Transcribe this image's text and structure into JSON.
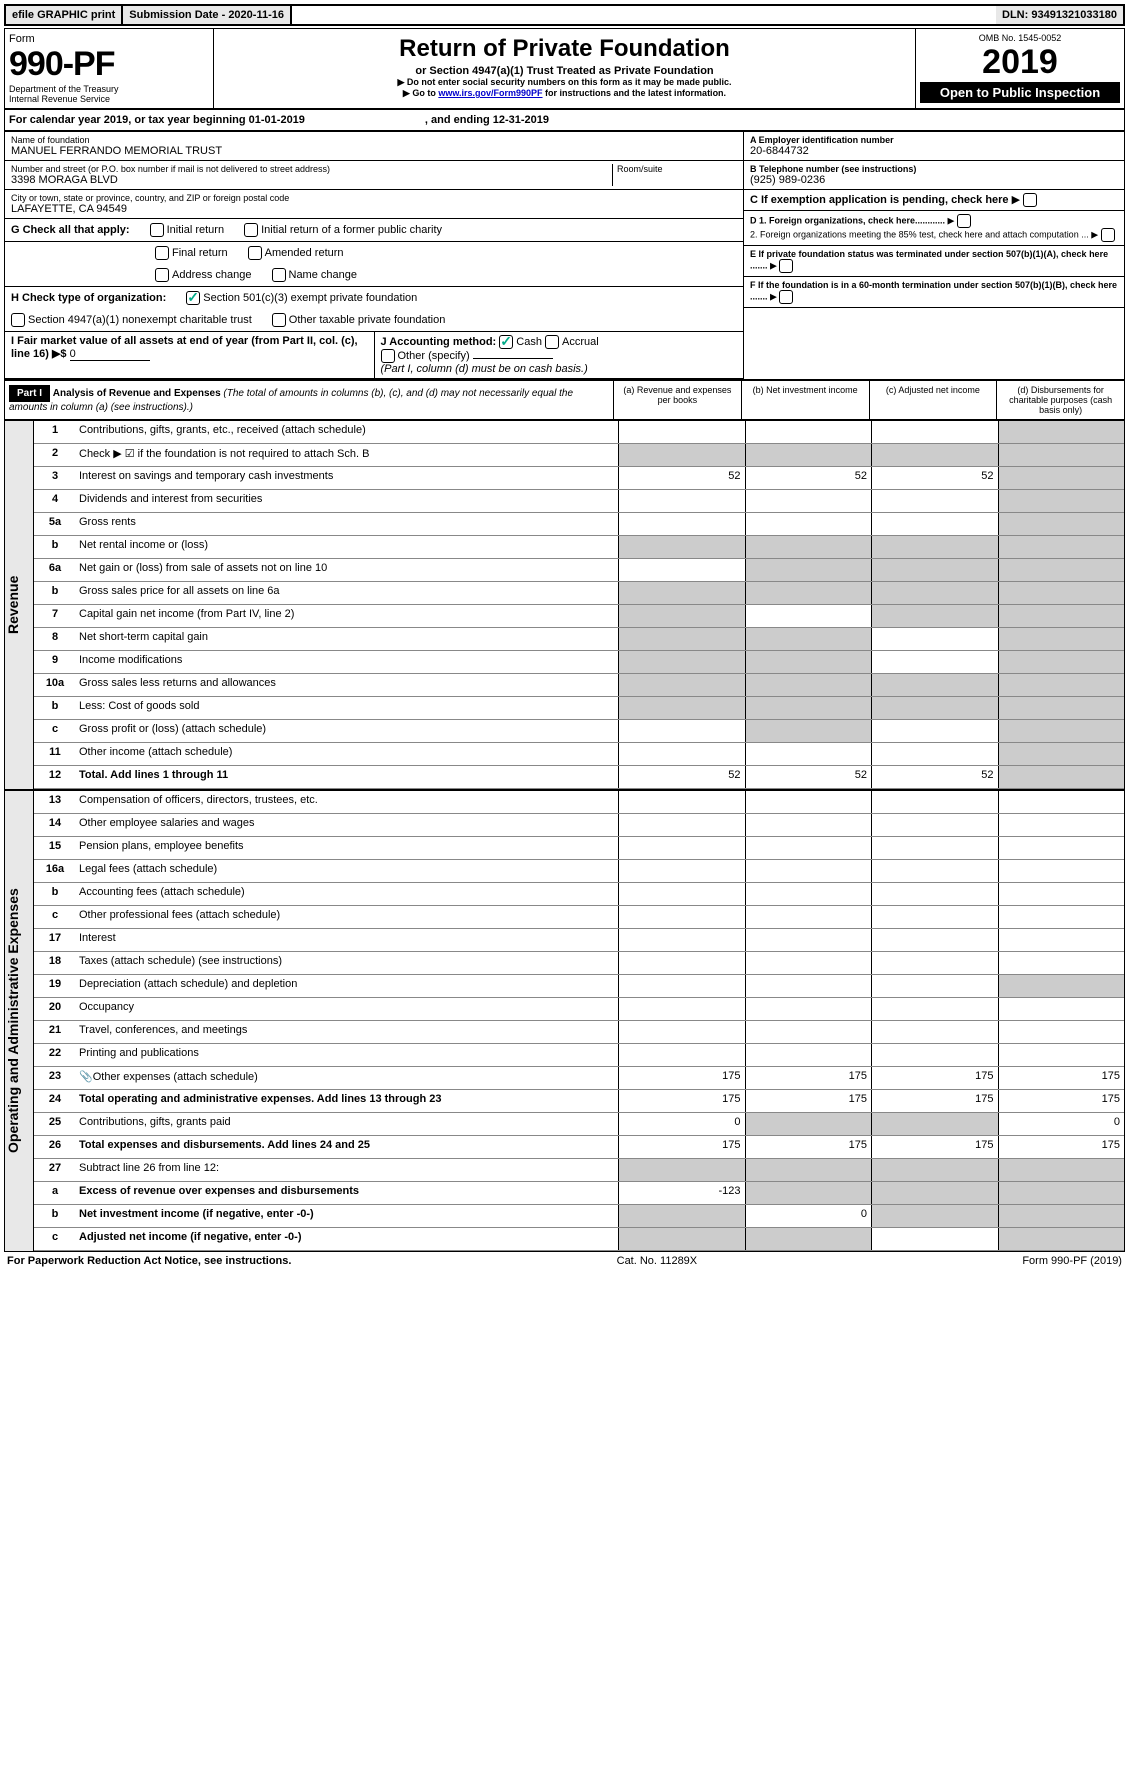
{
  "top": {
    "efile": "efile GRAPHIC print",
    "sub_label": "Submission Date - 2020-11-16",
    "dln": "DLN: 93491321033180"
  },
  "header": {
    "form_word": "Form",
    "form_num": "990-PF",
    "dept": "Department of the Treasury",
    "irs": "Internal Revenue Service",
    "title": "Return of Private Foundation",
    "subtitle": "or Section 4947(a)(1) Trust Treated as Private Foundation",
    "warn": "▶ Do not enter social security numbers on this form as it may be made public.",
    "goto": "▶ Go to ",
    "goto_link": "www.irs.gov/Form990PF",
    "goto_rest": " for instructions and the latest information.",
    "omb": "OMB No. 1545-0052",
    "year": "2019",
    "open": "Open to Public Inspection"
  },
  "cal": {
    "text": "For calendar year 2019, or tax year beginning 01-01-2019",
    "end": ", and ending 12-31-2019"
  },
  "name": {
    "label": "Name of foundation",
    "value": "MANUEL FERRANDO MEMORIAL TRUST"
  },
  "ein": {
    "label": "A Employer identification number",
    "value": "20-6844732"
  },
  "addr": {
    "label": "Number and street (or P.O. box number if mail is not delivered to street address)",
    "value": "3398 MORAGA BLVD",
    "room": "Room/suite"
  },
  "tel": {
    "label": "B Telephone number (see instructions)",
    "value": "(925) 989-0236"
  },
  "city": {
    "label": "City or town, state or province, country, and ZIP or foreign postal code",
    "value": "LAFAYETTE, CA  94549"
  },
  "c": {
    "text": "C If exemption application is pending, check here"
  },
  "g": {
    "label": "G Check all that apply:",
    "opts": [
      "Initial return",
      "Initial return of a former public charity",
      "Final return",
      "Amended return",
      "Address change",
      "Name change"
    ]
  },
  "d": {
    "d1": "D 1. Foreign organizations, check here............",
    "d2": "2. Foreign organizations meeting the 85% test, check here and attach computation ..."
  },
  "e": {
    "text": "E If private foundation status was terminated under section 507(b)(1)(A), check here ......."
  },
  "h": {
    "label": "H Check type of organization:",
    "o1": "Section 501(c)(3) exempt private foundation",
    "o2": "Section 4947(a)(1) nonexempt charitable trust",
    "o3": "Other taxable private foundation"
  },
  "i": {
    "label": "I Fair market value of all assets at end of year (from Part II, col. (c), line 16) ▶$ ",
    "value": "0"
  },
  "j": {
    "label": "J Accounting method:",
    "cash": "Cash",
    "accrual": "Accrual",
    "other": "Other (specify)",
    "note": "(Part I, column (d) must be on cash basis.)"
  },
  "f": {
    "text": "F If the foundation is in a 60-month termination under section 507(b)(1)(B), check here ......."
  },
  "part1": {
    "label": "Part I",
    "title": "Analysis of Revenue and Expenses ",
    "note": "(The total of amounts in columns (b), (c), and (d) may not necessarily equal the amounts in column (a) (see instructions).)",
    "cols": [
      "(a) Revenue and expenses per books",
      "(b) Net investment income",
      "(c) Adjusted net income",
      "(d) Disbursements for charitable purposes (cash basis only)"
    ]
  },
  "rev_label": "Revenue",
  "exp_label": "Operating and Administrative Expenses",
  "rows": [
    {
      "n": "1",
      "d": "Contributions, gifts, grants, etc., received (attach schedule)",
      "s": [
        0,
        0,
        0,
        1
      ]
    },
    {
      "n": "2",
      "d": "Check ▶ ☑ if the foundation is not required to attach Sch. B",
      "s": [
        1,
        1,
        1,
        1
      ],
      "bold": false
    },
    {
      "n": "3",
      "d": "Interest on savings and temporary cash investments",
      "a": "52",
      "b": "52",
      "c": "52",
      "s": [
        0,
        0,
        0,
        1
      ]
    },
    {
      "n": "4",
      "d": "Dividends and interest from securities",
      "s": [
        0,
        0,
        0,
        1
      ]
    },
    {
      "n": "5a",
      "d": "Gross rents",
      "s": [
        0,
        0,
        0,
        1
      ]
    },
    {
      "n": "b",
      "d": "Net rental income or (loss)",
      "s": [
        1,
        1,
        1,
        1
      ]
    },
    {
      "n": "6a",
      "d": "Net gain or (loss) from sale of assets not on line 10",
      "s": [
        0,
        1,
        1,
        1
      ]
    },
    {
      "n": "b",
      "d": "Gross sales price for all assets on line 6a",
      "s": [
        1,
        1,
        1,
        1
      ]
    },
    {
      "n": "7",
      "d": "Capital gain net income (from Part IV, line 2)",
      "s": [
        1,
        0,
        1,
        1
      ]
    },
    {
      "n": "8",
      "d": "Net short-term capital gain",
      "s": [
        1,
        1,
        0,
        1
      ]
    },
    {
      "n": "9",
      "d": "Income modifications",
      "s": [
        1,
        1,
        0,
        1
      ]
    },
    {
      "n": "10a",
      "d": "Gross sales less returns and allowances",
      "s": [
        1,
        1,
        1,
        1
      ]
    },
    {
      "n": "b",
      "d": "Less: Cost of goods sold",
      "s": [
        1,
        1,
        1,
        1
      ]
    },
    {
      "n": "c",
      "d": "Gross profit or (loss) (attach schedule)",
      "s": [
        0,
        1,
        0,
        1
      ]
    },
    {
      "n": "11",
      "d": "Other income (attach schedule)",
      "s": [
        0,
        0,
        0,
        1
      ]
    },
    {
      "n": "12",
      "d": "Total. Add lines 1 through 11",
      "a": "52",
      "b": "52",
      "c": "52",
      "s": [
        0,
        0,
        0,
        1
      ],
      "bold": true
    },
    {
      "n": "13",
      "d": "Compensation of officers, directors, trustees, etc.",
      "s": [
        0,
        0,
        0,
        0
      ]
    },
    {
      "n": "14",
      "d": "Other employee salaries and wages",
      "s": [
        0,
        0,
        0,
        0
      ]
    },
    {
      "n": "15",
      "d": "Pension plans, employee benefits",
      "s": [
        0,
        0,
        0,
        0
      ]
    },
    {
      "n": "16a",
      "d": "Legal fees (attach schedule)",
      "s": [
        0,
        0,
        0,
        0
      ]
    },
    {
      "n": "b",
      "d": "Accounting fees (attach schedule)",
      "s": [
        0,
        0,
        0,
        0
      ]
    },
    {
      "n": "c",
      "d": "Other professional fees (attach schedule)",
      "s": [
        0,
        0,
        0,
        0
      ]
    },
    {
      "n": "17",
      "d": "Interest",
      "s": [
        0,
        0,
        0,
        0
      ]
    },
    {
      "n": "18",
      "d": "Taxes (attach schedule) (see instructions)",
      "s": [
        0,
        0,
        0,
        0
      ]
    },
    {
      "n": "19",
      "d": "Depreciation (attach schedule) and depletion",
      "s": [
        0,
        0,
        0,
        1
      ]
    },
    {
      "n": "20",
      "d": "Occupancy",
      "s": [
        0,
        0,
        0,
        0
      ]
    },
    {
      "n": "21",
      "d": "Travel, conferences, and meetings",
      "s": [
        0,
        0,
        0,
        0
      ]
    },
    {
      "n": "22",
      "d": "Printing and publications",
      "s": [
        0,
        0,
        0,
        0
      ]
    },
    {
      "n": "23",
      "d": "Other expenses (attach schedule)",
      "a": "175",
      "b": "175",
      "c": "175",
      "dd": "175",
      "icon": "📎",
      "s": [
        0,
        0,
        0,
        0
      ]
    },
    {
      "n": "24",
      "d": "Total operating and administrative expenses. Add lines 13 through 23",
      "a": "175",
      "b": "175",
      "c": "175",
      "dd": "175",
      "s": [
        0,
        0,
        0,
        0
      ],
      "bold": true
    },
    {
      "n": "25",
      "d": "Contributions, gifts, grants paid",
      "a": "0",
      "dd": "0",
      "s": [
        0,
        1,
        1,
        0
      ]
    },
    {
      "n": "26",
      "d": "Total expenses and disbursements. Add lines 24 and 25",
      "a": "175",
      "b": "175",
      "c": "175",
      "dd": "175",
      "s": [
        0,
        0,
        0,
        0
      ],
      "bold": true
    },
    {
      "n": "27",
      "d": "Subtract line 26 from line 12:",
      "s": [
        1,
        1,
        1,
        1
      ]
    },
    {
      "n": "a",
      "d": "Excess of revenue over expenses and disbursements",
      "a": "-123",
      "s": [
        0,
        1,
        1,
        1
      ],
      "bold": true
    },
    {
      "n": "b",
      "d": "Net investment income (if negative, enter -0-)",
      "b": "0",
      "s": [
        1,
        0,
        1,
        1
      ],
      "bold": true
    },
    {
      "n": "c",
      "d": "Adjusted net income (if negative, enter -0-)",
      "s": [
        1,
        1,
        0,
        1
      ],
      "bold": true
    }
  ],
  "footer": {
    "left": "For Paperwork Reduction Act Notice, see instructions.",
    "mid": "Cat. No. 11289X",
    "right": "Form 990-PF (2019)"
  }
}
